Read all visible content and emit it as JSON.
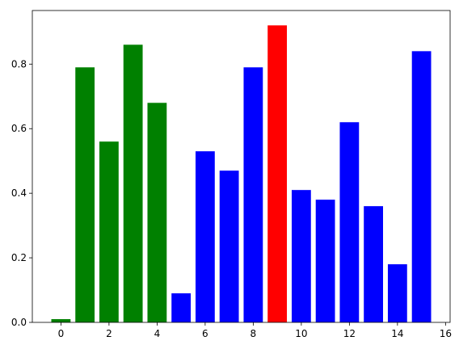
{
  "chart_data": {
    "type": "bar",
    "x": [
      0,
      1,
      2,
      3,
      4,
      5,
      6,
      7,
      8,
      9,
      10,
      11,
      12,
      13,
      14,
      15
    ],
    "values": [
      0.01,
      0.79,
      0.56,
      0.86,
      0.68,
      0.09,
      0.53,
      0.47,
      0.79,
      0.92,
      0.41,
      0.38,
      0.62,
      0.36,
      0.18,
      0.84
    ],
    "colors": [
      "green",
      "green",
      "green",
      "green",
      "green",
      "blue",
      "blue",
      "blue",
      "blue",
      "red",
      "blue",
      "blue",
      "blue",
      "blue",
      "blue",
      "blue"
    ],
    "xlim": [
      -1.19,
      16.19
    ],
    "xticks": [
      0,
      2,
      4,
      6,
      8,
      10,
      12,
      14,
      16
    ],
    "ylim": [
      0,
      0.966
    ],
    "yticks": [
      {
        "value": 0,
        "label": "0.0"
      },
      0.2,
      0.4,
      0.6,
      0.8
    ]
  }
}
